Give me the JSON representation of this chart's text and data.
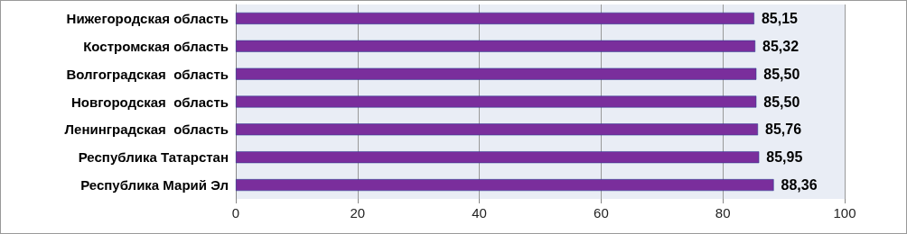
{
  "chart_data": {
    "type": "bar",
    "orientation": "horizontal",
    "categories": [
      "Нижегородская область",
      "Костромская область",
      "Волгоградская  область",
      "Новгородская  область",
      "Ленинградская  область",
      "Республика Татарстан",
      "Республика Марий Эл"
    ],
    "values": [
      85.15,
      85.32,
      85.5,
      85.5,
      85.76,
      85.95,
      88.36
    ],
    "value_labels": [
      "85,15",
      "85,32",
      "85,50",
      "85,50",
      "85,76",
      "85,95",
      "88,36"
    ],
    "color": "#7a2e9c",
    "xlim": [
      0,
      100
    ],
    "xticks": [
      0,
      20,
      40,
      60,
      80,
      100
    ],
    "grid": "x"
  }
}
